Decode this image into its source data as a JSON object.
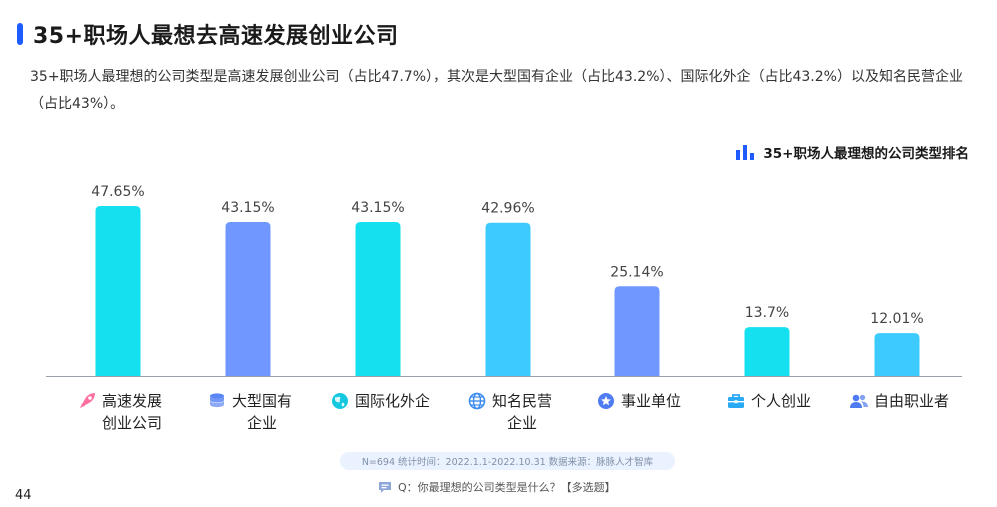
{
  "page": {
    "title": "35+职场人最想去高速发展创业公司",
    "description": "35+职场人最理想的公司类型是高速发展创业公司（占比47.7%），其次是大型国有企业（占比43.2%）、国际化外企（占比43.2%）以及知名民营企业（占比43%）。",
    "legend_label": "35+职场人最理想的公司类型排名",
    "footnote": "N=694    统计时间：2022.1.1-2022.10.31    数据来源：脉脉人才智库",
    "question": "Q：你最理想的公司类型是什么？【多选题】",
    "page_number": "44"
  },
  "colors": {
    "cyan": "#14e0f0",
    "blue": "#6f97ff",
    "light_blue": "#3dcbff",
    "accent": "#1f5cff"
  },
  "chart_data": {
    "type": "bar",
    "title": "35+职场人最理想的公司类型排名",
    "categories": [
      "高速发展创业公司",
      "大型国有企业",
      "国际化外企",
      "知名民营企业",
      "事业单位",
      "个人创业",
      "自由职业者"
    ],
    "value_labels": [
      "47.65%",
      "43.15%",
      "43.15%",
      "42.96%",
      "25.14%",
      "13.7%",
      "12.01%"
    ],
    "values": [
      47.65,
      43.15,
      43.15,
      42.96,
      25.14,
      13.7,
      12.01
    ],
    "bar_colors": [
      "#14e0f0",
      "#6f97ff",
      "#14e0f0",
      "#3dcbff",
      "#6f97ff",
      "#14e0f0",
      "#3dcbff"
    ],
    "ylim": [
      0,
      47.65
    ],
    "grid": false
  },
  "categories_display": [
    {
      "line1": "高速发展",
      "line2": "创业公司",
      "icon": "rocket-icon",
      "color": "#ff6fa0"
    },
    {
      "line1": "大型国有",
      "line2": "企业",
      "icon": "coin-stack-icon",
      "color": "#5b86f5"
    },
    {
      "line1": "国际化外企",
      "line2": "",
      "icon": "globe-icon",
      "color": "#14c8e0"
    },
    {
      "line1": "知名民营",
      "line2": "企业",
      "icon": "globe-outline-icon",
      "color": "#3d8cf0"
    },
    {
      "line1": "事业单位",
      "line2": "",
      "icon": "badge-icon",
      "color": "#4f7cf2"
    },
    {
      "line1": "个人创业",
      "line2": "",
      "icon": "briefcase-icon",
      "color": "#2aa9f5"
    },
    {
      "line1": "自由职业者",
      "line2": "",
      "icon": "users-icon",
      "color": "#4f7cf2"
    }
  ]
}
